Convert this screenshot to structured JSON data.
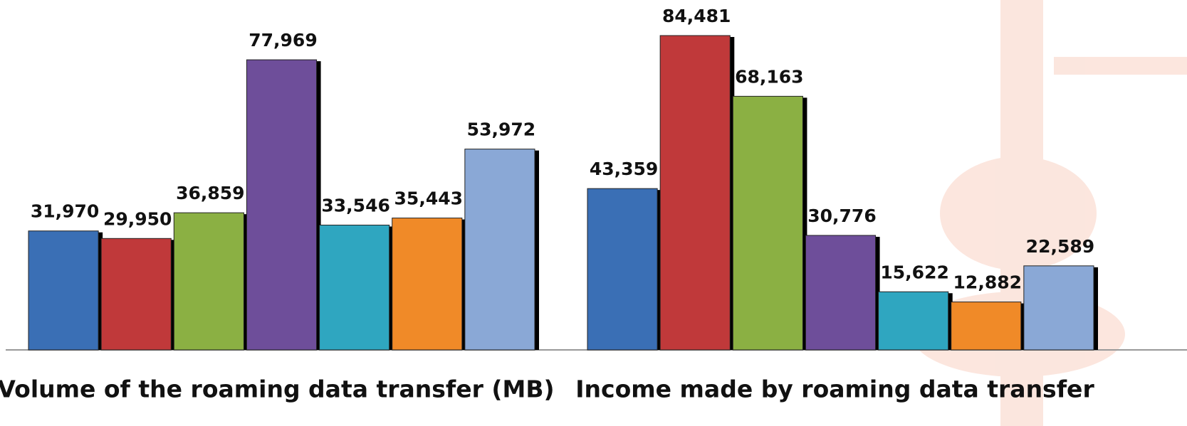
{
  "chart_data": [
    {
      "type": "bar",
      "title": "Volume of the roaming data transfer (MB)",
      "categories": [
        null,
        null,
        null,
        null,
        null,
        null,
        null
      ],
      "values": [
        31970,
        29950,
        36859,
        77969,
        33546,
        35443,
        53972
      ],
      "value_labels": [
        "31,970",
        "29,950",
        "36,859",
        "77,969",
        "33,546",
        "35,443",
        "53,972"
      ],
      "colors": [
        "#3a6fb5",
        "#c0393a",
        "#8bb043",
        "#6e4e9a",
        "#2fa6c0",
        "#f08a28",
        "#8aa8d6"
      ]
    },
    {
      "type": "bar",
      "title": "Income made by roaming data transfer",
      "categories": [
        null,
        null,
        null,
        null,
        null,
        null,
        null
      ],
      "values": [
        43359,
        84481,
        68163,
        30776,
        15622,
        12882,
        22589
      ],
      "value_labels": [
        "43,359",
        "84,481",
        "68,163",
        "30,776",
        "15,622",
        "12,882",
        "22,589"
      ],
      "colors": [
        "#3a6fb5",
        "#c0393a",
        "#8bb043",
        "#6e4e9a",
        "#2fa6c0",
        "#f08a28",
        "#8aa8d6"
      ]
    }
  ]
}
